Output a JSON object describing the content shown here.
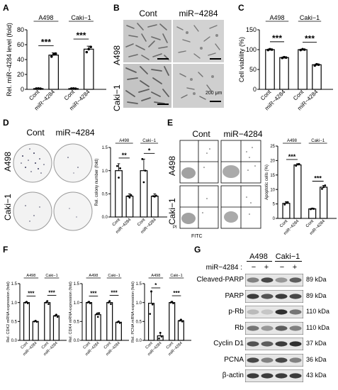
{
  "panels": {
    "A": {
      "label": "A",
      "ylabel": "Rel. miR−4284 level (fold)",
      "groups": [
        "A498",
        "Caki−1"
      ],
      "ticks": [
        "0",
        "20",
        "40",
        "60",
        "80"
      ],
      "categories": [
        "Cont",
        "miR−4284",
        "Cont",
        "miR−4284"
      ],
      "significance": [
        "***",
        "***"
      ]
    },
    "B": {
      "label": "B",
      "columns": [
        "Cont",
        "miR−4284"
      ],
      "rows": [
        "A498",
        "Caki−1"
      ],
      "scale": "200 μm"
    },
    "C": {
      "label": "C",
      "ylabel": "Cell viability (%)",
      "groups": [
        "A498",
        "Caki−1"
      ],
      "ticks": [
        "0",
        "50",
        "100",
        "150"
      ],
      "categories": [
        "Cont",
        "miR−4284",
        "Cont",
        "miR−4284"
      ],
      "significance": [
        "***",
        "***"
      ]
    },
    "D": {
      "label": "D",
      "columns": [
        "Cont",
        "miR−4284"
      ],
      "rows": [
        "A498",
        "Caki−1"
      ],
      "ylabel": "Rel. colony number (fold)",
      "groups": [
        "A498",
        "Caki−1"
      ],
      "ticks": [
        "0.0",
        "0.5",
        "1.0",
        "1.5"
      ],
      "categories": [
        "Cont",
        "miR−4284",
        "Cont",
        "miR−4284"
      ],
      "significance": [
        "**",
        "*"
      ]
    },
    "E": {
      "label": "E",
      "columns": [
        "Cont",
        "miR−4284"
      ],
      "rows": [
        "A498",
        "Caki−1"
      ],
      "axis_x": "FITC",
      "axis_y": "PI",
      "ylabel": "Apoptotic cells (%)",
      "groups": [
        "A498",
        "Caki−1"
      ],
      "ticks": [
        "0",
        "5",
        "10",
        "15",
        "20",
        "25"
      ],
      "categories": [
        "Cont",
        "miR−4284",
        "Cont",
        "miR−4284"
      ],
      "significance": [
        "***",
        "***"
      ]
    },
    "F": {
      "label": "F",
      "subplots": [
        {
          "ylabel": "Rel. CDK2 mRNA expression (fold)",
          "ticks": [
            "0.0",
            "0.5",
            "1.0",
            "1.5"
          ],
          "significance": [
            "***",
            "***"
          ]
        },
        {
          "ylabel": "Rel. CDK4 mRNA expression (fold)",
          "ticks": [
            "0.0",
            "0.5",
            "1.0",
            "1.5"
          ],
          "significance": [
            "***",
            "***"
          ]
        },
        {
          "ylabel": "Rel. PCNA mRNA expression (fold)",
          "ticks": [
            "0.0",
            "0.5",
            "1.0",
            "1.5"
          ],
          "significance": [
            "*",
            "***"
          ]
        }
      ],
      "groups": [
        "A498",
        "Caki−1"
      ],
      "categories": [
        "Cont",
        "miR−4284",
        "Cont",
        "miR−4284"
      ]
    },
    "G": {
      "label": "G",
      "groups": [
        "A498",
        "Caki−1"
      ],
      "treatment_label": "miR−4284 :",
      "lane_signs": [
        "−",
        "+",
        "−",
        "+"
      ],
      "bands": [
        {
          "name": "Cleaved-PARP",
          "kda": "89 kDa"
        },
        {
          "name": "PARP",
          "kda": "89 kDa"
        },
        {
          "name": "p-Rb",
          "kda": "110 kDa"
        },
        {
          "name": "Rb",
          "kda": "110 kDa"
        },
        {
          "name": "Cyclin D1",
          "kda": "37 kDa"
        },
        {
          "name": "PCNA",
          "kda": "36 kDa"
        },
        {
          "name": "β-actin",
          "kda": "43 kDa"
        }
      ]
    }
  },
  "chart_data": [
    {
      "panel": "A",
      "type": "bar",
      "categories": [
        "Cont",
        "miR−4284",
        "Cont",
        "miR−4284"
      ],
      "values": [
        1,
        46,
        1,
        54
      ],
      "errors": [
        0.2,
        3,
        0.2,
        4
      ],
      "ylim": [
        0,
        80
      ],
      "ylabel": "Rel. miR−4284 level (fold)"
    },
    {
      "panel": "C",
      "type": "bar",
      "categories": [
        "Cont",
        "miR−4284",
        "Cont",
        "miR−4284"
      ],
      "values": [
        100,
        80,
        100,
        62
      ],
      "errors": [
        2,
        2,
        1,
        2
      ],
      "ylim": [
        0,
        150
      ],
      "ylabel": "Cell viability (%)"
    },
    {
      "panel": "D",
      "type": "bar",
      "categories": [
        "Cont",
        "miR−4284",
        "Cont",
        "miR−4284"
      ],
      "values": [
        1.0,
        0.45,
        1.0,
        0.45
      ],
      "errors": [
        0.15,
        0.05,
        0.25,
        0.05
      ],
      "ylim": [
        0,
        1.5
      ],
      "ylabel": "Rel. colony number (fold)"
    },
    {
      "panel": "E",
      "type": "bar",
      "categories": [
        "Cont",
        "miR−4284",
        "Cont",
        "miR−4284"
      ],
      "values": [
        5.2,
        18.5,
        3.3,
        10.8
      ],
      "errors": [
        0.6,
        0.4,
        0.2,
        0.6
      ],
      "ylim": [
        0,
        25
      ],
      "ylabel": "Apoptotic cells (%)"
    },
    {
      "panel": "F1",
      "type": "bar",
      "categories": [
        "Cont",
        "miR−4284",
        "Cont",
        "miR−4284"
      ],
      "values": [
        1.0,
        0.5,
        1.0,
        0.65
      ],
      "errors": [
        0.02,
        0.02,
        0.04,
        0.03
      ],
      "ylim": [
        0,
        1.5
      ],
      "ylabel": "Rel. CDK2 mRNA expression (fold)"
    },
    {
      "panel": "F2",
      "type": "bar",
      "categories": [
        "Cont",
        "miR−4284",
        "Cont",
        "miR−4284"
      ],
      "values": [
        1.0,
        0.68,
        1.0,
        0.48
      ],
      "errors": [
        0.02,
        0.05,
        0.04,
        0.02
      ],
      "ylim": [
        0,
        1.5
      ],
      "ylabel": "Rel. CDK4 mRNA expression (fold)"
    },
    {
      "panel": "F3",
      "type": "bar",
      "categories": [
        "Cont",
        "miR−4284",
        "Cont",
        "miR−4284"
      ],
      "values": [
        0.98,
        0.12,
        1.0,
        0.52
      ],
      "errors": [
        0.3,
        0.08,
        0.03,
        0.03
      ],
      "ylim": [
        0,
        1.5
      ],
      "ylabel": "Rel. PCNA mRNA expression (fold)"
    }
  ]
}
